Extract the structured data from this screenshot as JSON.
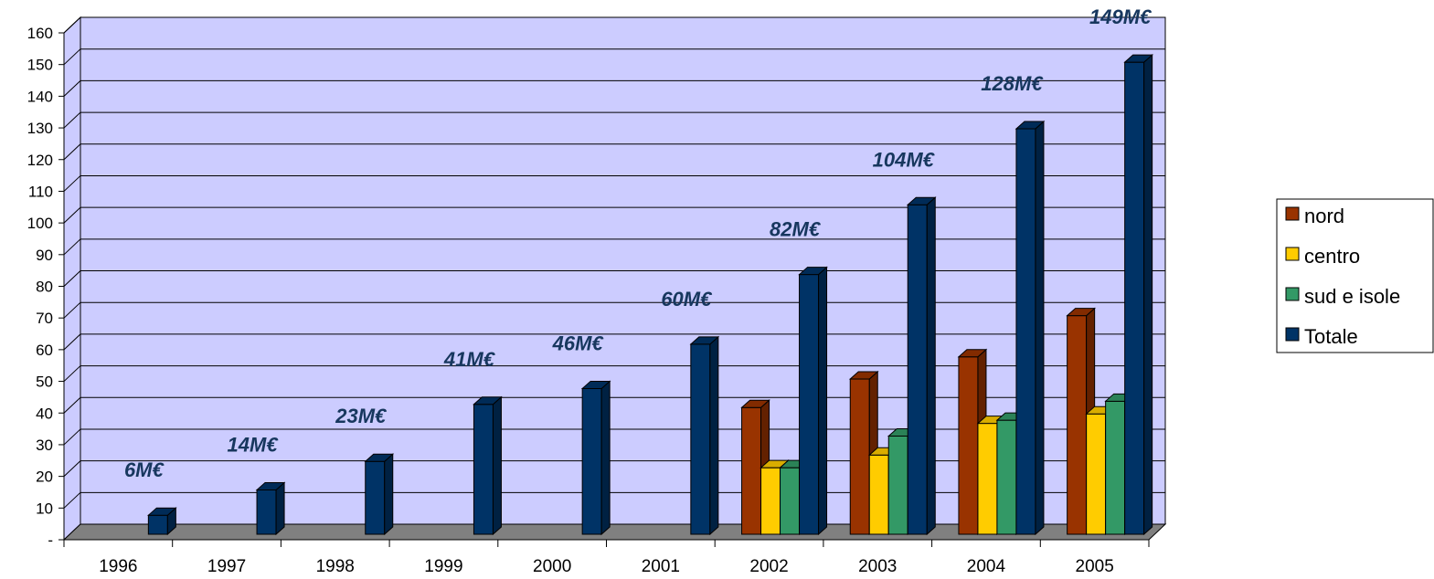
{
  "chart_data": {
    "type": "bar",
    "categories": [
      "1996",
      "1997",
      "1998",
      "1999",
      "2000",
      "2001",
      "2002",
      "2003",
      "2004",
      "2005"
    ],
    "series": [
      {
        "name": "nord",
        "color": "#993300",
        "values": [
          null,
          null,
          null,
          null,
          null,
          null,
          40,
          49,
          56,
          69
        ]
      },
      {
        "name": "centro",
        "color": "#ffcc00",
        "values": [
          null,
          null,
          null,
          null,
          null,
          null,
          21,
          25,
          35,
          38
        ]
      },
      {
        "name": "sud e isole",
        "color": "#339966",
        "values": [
          null,
          null,
          null,
          null,
          null,
          null,
          21,
          31,
          36,
          42
        ]
      },
      {
        "name": "Totale",
        "color": "#003366",
        "values": [
          6,
          14,
          23,
          41,
          46,
          60,
          82,
          104,
          128,
          149
        ]
      }
    ],
    "data_labels": [
      "6M€",
      "14M€",
      "23M€",
      "41M€",
      "46M€",
      "60M€",
      "82M€",
      "104M€",
      "128M€",
      "149M€"
    ],
    "ylim": [
      0,
      160
    ],
    "yticks": [
      0,
      10,
      20,
      30,
      40,
      50,
      60,
      70,
      80,
      90,
      100,
      110,
      120,
      130,
      140,
      150,
      160
    ],
    "ytick_labels": [
      "-",
      "10",
      "20",
      "30",
      "40",
      "50",
      "60",
      "70",
      "80",
      "90",
      "100",
      "110",
      "120",
      "130",
      "140",
      "150",
      "160"
    ],
    "grid": true,
    "legend_position": "right",
    "plot_background": "#ccccff",
    "floor_color": "#808080",
    "label_color": "#17375e"
  }
}
